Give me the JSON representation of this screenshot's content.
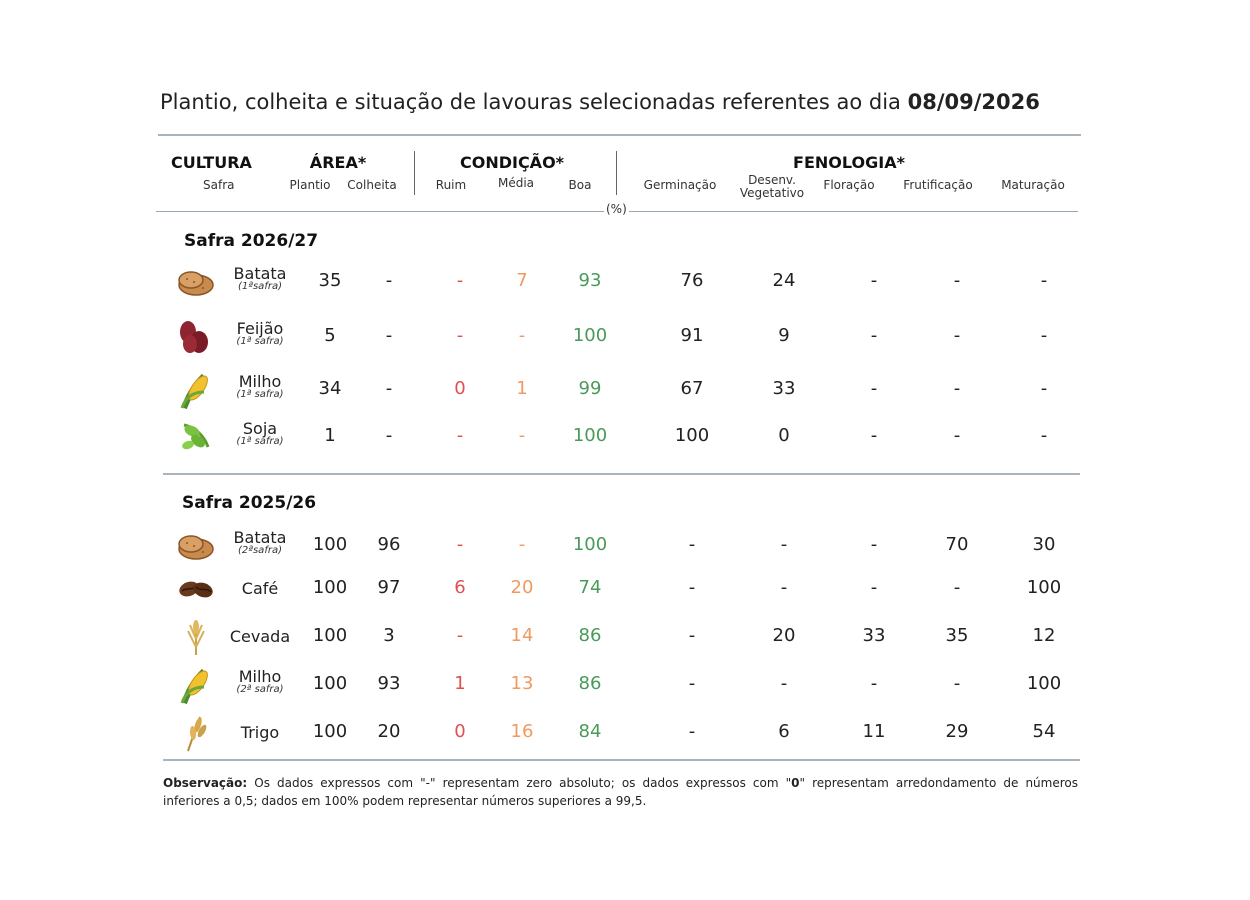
{
  "title": {
    "text": "Plantio, colheita e situação de lavouras selecionadas referentes ao dia ",
    "date": "08/09/2026"
  },
  "headers": {
    "cultura": "CULTURA",
    "safra": "Safra",
    "area": "ÁREA*",
    "plantio": "Plantio",
    "colheita": "Colheita",
    "condicao": "CONDIÇÃO*",
    "ruim": "Ruim",
    "media": "Média",
    "boa": "Boa",
    "fenologia": "FENOLOGIA*",
    "germinacao": "Germinação",
    "desenv_1": "Desenv.",
    "desenv_2": "Vegetativo",
    "floracao": "Floração",
    "frutificacao": "Frutificação",
    "maturacao": "Maturação",
    "pct": "(%)"
  },
  "colors": {
    "ruim": "#e05050",
    "media": "#ef9a60",
    "boa": "#4a9a5a",
    "rule": "#a9b4bf"
  },
  "sections": [
    {
      "title": "Safra 2026/27",
      "rows": [
        {
          "icon": "potato-icon",
          "name": "Batata",
          "sub": "(1ªsafra)",
          "plantio": "35",
          "colheita": "-",
          "ruim": "-",
          "media": "7",
          "boa": "93",
          "germinacao": "76",
          "desenv": "24",
          "floracao": "-",
          "frutificacao": "-",
          "maturacao": "-"
        },
        {
          "icon": "bean-icon",
          "name": "Feijão",
          "sub": "(1ª safra)",
          "plantio": "5",
          "colheita": "-",
          "ruim": "-",
          "media": "-",
          "boa": "100",
          "germinacao": "91",
          "desenv": "9",
          "floracao": "-",
          "frutificacao": "-",
          "maturacao": "-"
        },
        {
          "icon": "corn-icon",
          "name": "Milho",
          "sub": "(1ª safra)",
          "plantio": "34",
          "colheita": "-",
          "ruim": "0",
          "media": "1",
          "boa": "99",
          "germinacao": "67",
          "desenv": "33",
          "floracao": "-",
          "frutificacao": "-",
          "maturacao": "-"
        },
        {
          "icon": "soy-icon",
          "name": "Soja",
          "sub": "(1ª safra)",
          "plantio": "1",
          "colheita": "-",
          "ruim": "-",
          "media": "-",
          "boa": "100",
          "germinacao": "100",
          "desenv": "0",
          "floracao": "-",
          "frutificacao": "-",
          "maturacao": "-"
        }
      ]
    },
    {
      "title": "Safra 2025/26",
      "rows": [
        {
          "icon": "potato-icon",
          "name": "Batata",
          "sub": "(2ªsafra)",
          "plantio": "100",
          "colheita": "96",
          "ruim": "-",
          "media": "-",
          "boa": "100",
          "germinacao": "-",
          "desenv": "-",
          "floracao": "-",
          "frutificacao": "70",
          "maturacao": "30"
        },
        {
          "icon": "coffee-icon",
          "name": "Café",
          "sub": "",
          "plantio": "100",
          "colheita": "97",
          "ruim": "6",
          "media": "20",
          "boa": "74",
          "germinacao": "-",
          "desenv": "-",
          "floracao": "-",
          "frutificacao": "-",
          "maturacao": "100"
        },
        {
          "icon": "barley-icon",
          "name": "Cevada",
          "sub": "",
          "plantio": "100",
          "colheita": "3",
          "ruim": "-",
          "media": "14",
          "boa": "86",
          "germinacao": "-",
          "desenv": "20",
          "floracao": "33",
          "frutificacao": "35",
          "maturacao": "12"
        },
        {
          "icon": "corn-icon",
          "name": "Milho",
          "sub": "(2ª safra)",
          "plantio": "100",
          "colheita": "93",
          "ruim": "1",
          "media": "13",
          "boa": "86",
          "germinacao": "-",
          "desenv": "-",
          "floracao": "-",
          "frutificacao": "-",
          "maturacao": "100"
        },
        {
          "icon": "wheat-icon",
          "name": "Trigo",
          "sub": "",
          "plantio": "100",
          "colheita": "20",
          "ruim": "0",
          "media": "16",
          "boa": "84",
          "germinacao": "-",
          "desenv": "6",
          "floracao": "11",
          "frutificacao": "29",
          "maturacao": "54"
        }
      ]
    }
  ],
  "note": {
    "label": "Observação:",
    "text_1": " Os dados expressos com \"-\" representam zero absoluto; os dados expressos com \"",
    "zero": "0",
    "text_2": "\" representam arredondamento de números inferiores a 0,5; dados em 100% podem representar números superiores a 99,5."
  }
}
